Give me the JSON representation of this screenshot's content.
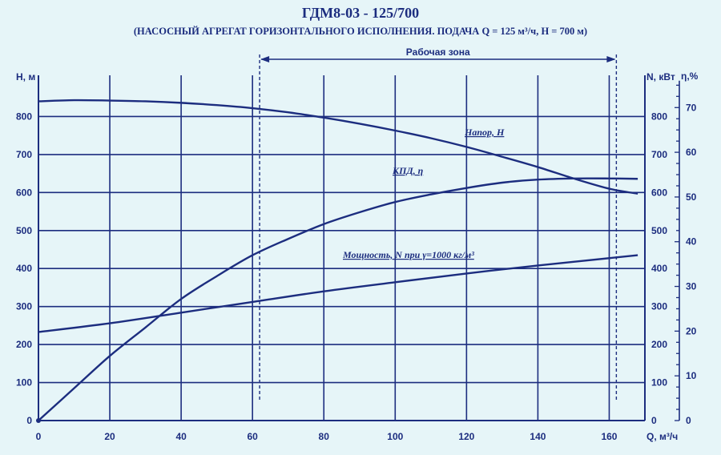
{
  "title": "ГДМ8-03 - 125/700",
  "subtitle": "(НАСОСНЫЙ АГРЕГАТ ГОРИЗОНТАЛЬНОГО ИСПОЛНЕНИЯ. ПОДАЧА Q =  125 м³/ч, Н = 700 м)",
  "colors": {
    "ink": "#1c2d7f",
    "background": "#e6f5f8"
  },
  "chart_data": {
    "type": "line",
    "title": "ГДМ8-03 - 125/700",
    "subtitle": "(НАСОСНЫЙ АГРЕГАТ ГОРИЗОНТАЛЬНОГО ИСПОЛНЕНИЯ. ПОДАЧА Q =  125 м³/ч, Н = 700 м)",
    "xlabel": "Q, м³/ч",
    "ylabel_left": "Н, м",
    "ylabel_right": "N, кВт",
    "ylabel_eff": "η,%",
    "xlim": [
      0,
      170
    ],
    "ylim": [
      0,
      900
    ],
    "eff_lim": [
      0,
      80
    ],
    "x_ticks": [
      "0",
      "20",
      "40",
      "60",
      "80",
      "100",
      "120",
      "140",
      "160"
    ],
    "y_ticks": [
      "0",
      "100",
      "200",
      "300",
      "400",
      "500",
      "600",
      "700",
      "800"
    ],
    "eff_ticks": [
      "0",
      "10",
      "20",
      "30",
      "40",
      "50",
      "60",
      "70"
    ],
    "grid": true,
    "work_zone": {
      "label": "Рабочая зона",
      "from": 62,
      "to": 162
    },
    "series": [
      {
        "name": "Напор, Н",
        "x": [
          0,
          10,
          20,
          30,
          40,
          50,
          60,
          70,
          80,
          90,
          100,
          110,
          120,
          130,
          140,
          150,
          160,
          168
        ],
        "values": [
          840,
          843,
          842,
          840,
          836,
          830,
          822,
          811,
          797,
          781,
          763,
          743,
          720,
          694,
          667,
          637,
          610,
          597
        ]
      },
      {
        "name": "КПД, η",
        "x": [
          0,
          10,
          20,
          30,
          40,
          50,
          60,
          70,
          80,
          90,
          100,
          110,
          120,
          130,
          140,
          150,
          160,
          168
        ],
        "values": [
          0,
          85,
          170,
          245,
          320,
          380,
          435,
          478,
          517,
          548,
          575,
          595,
          612,
          626,
          634,
          637,
          637,
          636
        ]
      },
      {
        "name": "Мощность, N при  γ=1000 кг/м³",
        "x": [
          0,
          20,
          40,
          60,
          80,
          100,
          120,
          140,
          168
        ],
        "values": [
          233,
          256,
          284,
          312,
          340,
          364,
          387,
          408,
          435
        ]
      }
    ]
  }
}
